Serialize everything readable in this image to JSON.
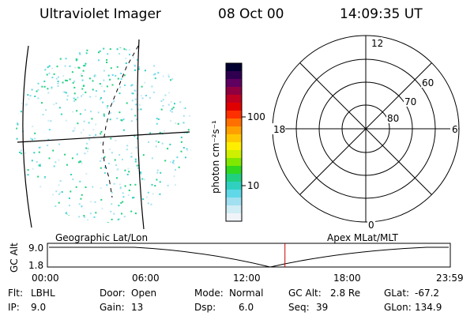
{
  "header": {
    "title": "Ultraviolet Imager",
    "date": "08 Oct 00",
    "time": "14:09:35 UT"
  },
  "colorbar": {
    "label": "photon cm⁻²s⁻¹",
    "ticks": [
      "100",
      "10"
    ],
    "colors": [
      "#000030",
      "#300050",
      "#600060",
      "#900040",
      "#c00020",
      "#e00000",
      "#ff3000",
      "#ff7000",
      "#ffa000",
      "#ffc800",
      "#ffee00",
      "#ccf000",
      "#80e800",
      "#30d820",
      "#20d080",
      "#30d0c0",
      "#60d8e8",
      "#a0e0f0",
      "#d0ecf4",
      "#f0f4f8"
    ]
  },
  "polar": {
    "mlt_labels": [
      "12",
      "18",
      "6",
      "0"
    ],
    "lat_labels": [
      "60",
      "70",
      "80"
    ]
  },
  "timeline": {
    "y_title": "GC Alt",
    "y_ticks": [
      "9.0",
      "1.8"
    ],
    "left_caption": "Geographic Lat/Lon",
    "right_caption": "Apex MLat/MLT",
    "x_ticks": [
      "00:00",
      "06:00",
      "12:00",
      "18:00",
      "23:59"
    ],
    "marker_time": "14:09:35"
  },
  "footer": {
    "row1": [
      {
        "label": "Flt:",
        "value": "LBHL"
      },
      {
        "label": "Door:",
        "value": "Open"
      },
      {
        "label": "Mode:",
        "value": "Normal"
      },
      {
        "label": "GC Alt:",
        "value": "2.8 Re"
      },
      {
        "label": "GLat:",
        "value": "-67.2"
      }
    ],
    "row2": [
      {
        "label": "IP:",
        "value": "9.0"
      },
      {
        "label": "Gain:",
        "value": "13"
      },
      {
        "label": "Dsp:",
        "value": "6.0"
      },
      {
        "label": "Seq:",
        "value": "39"
      },
      {
        "label": "GLon:",
        "value": "134.9"
      }
    ]
  },
  "colors": {
    "foreground": "#000000",
    "background": "#ffffff",
    "marker": "#cc0000"
  }
}
